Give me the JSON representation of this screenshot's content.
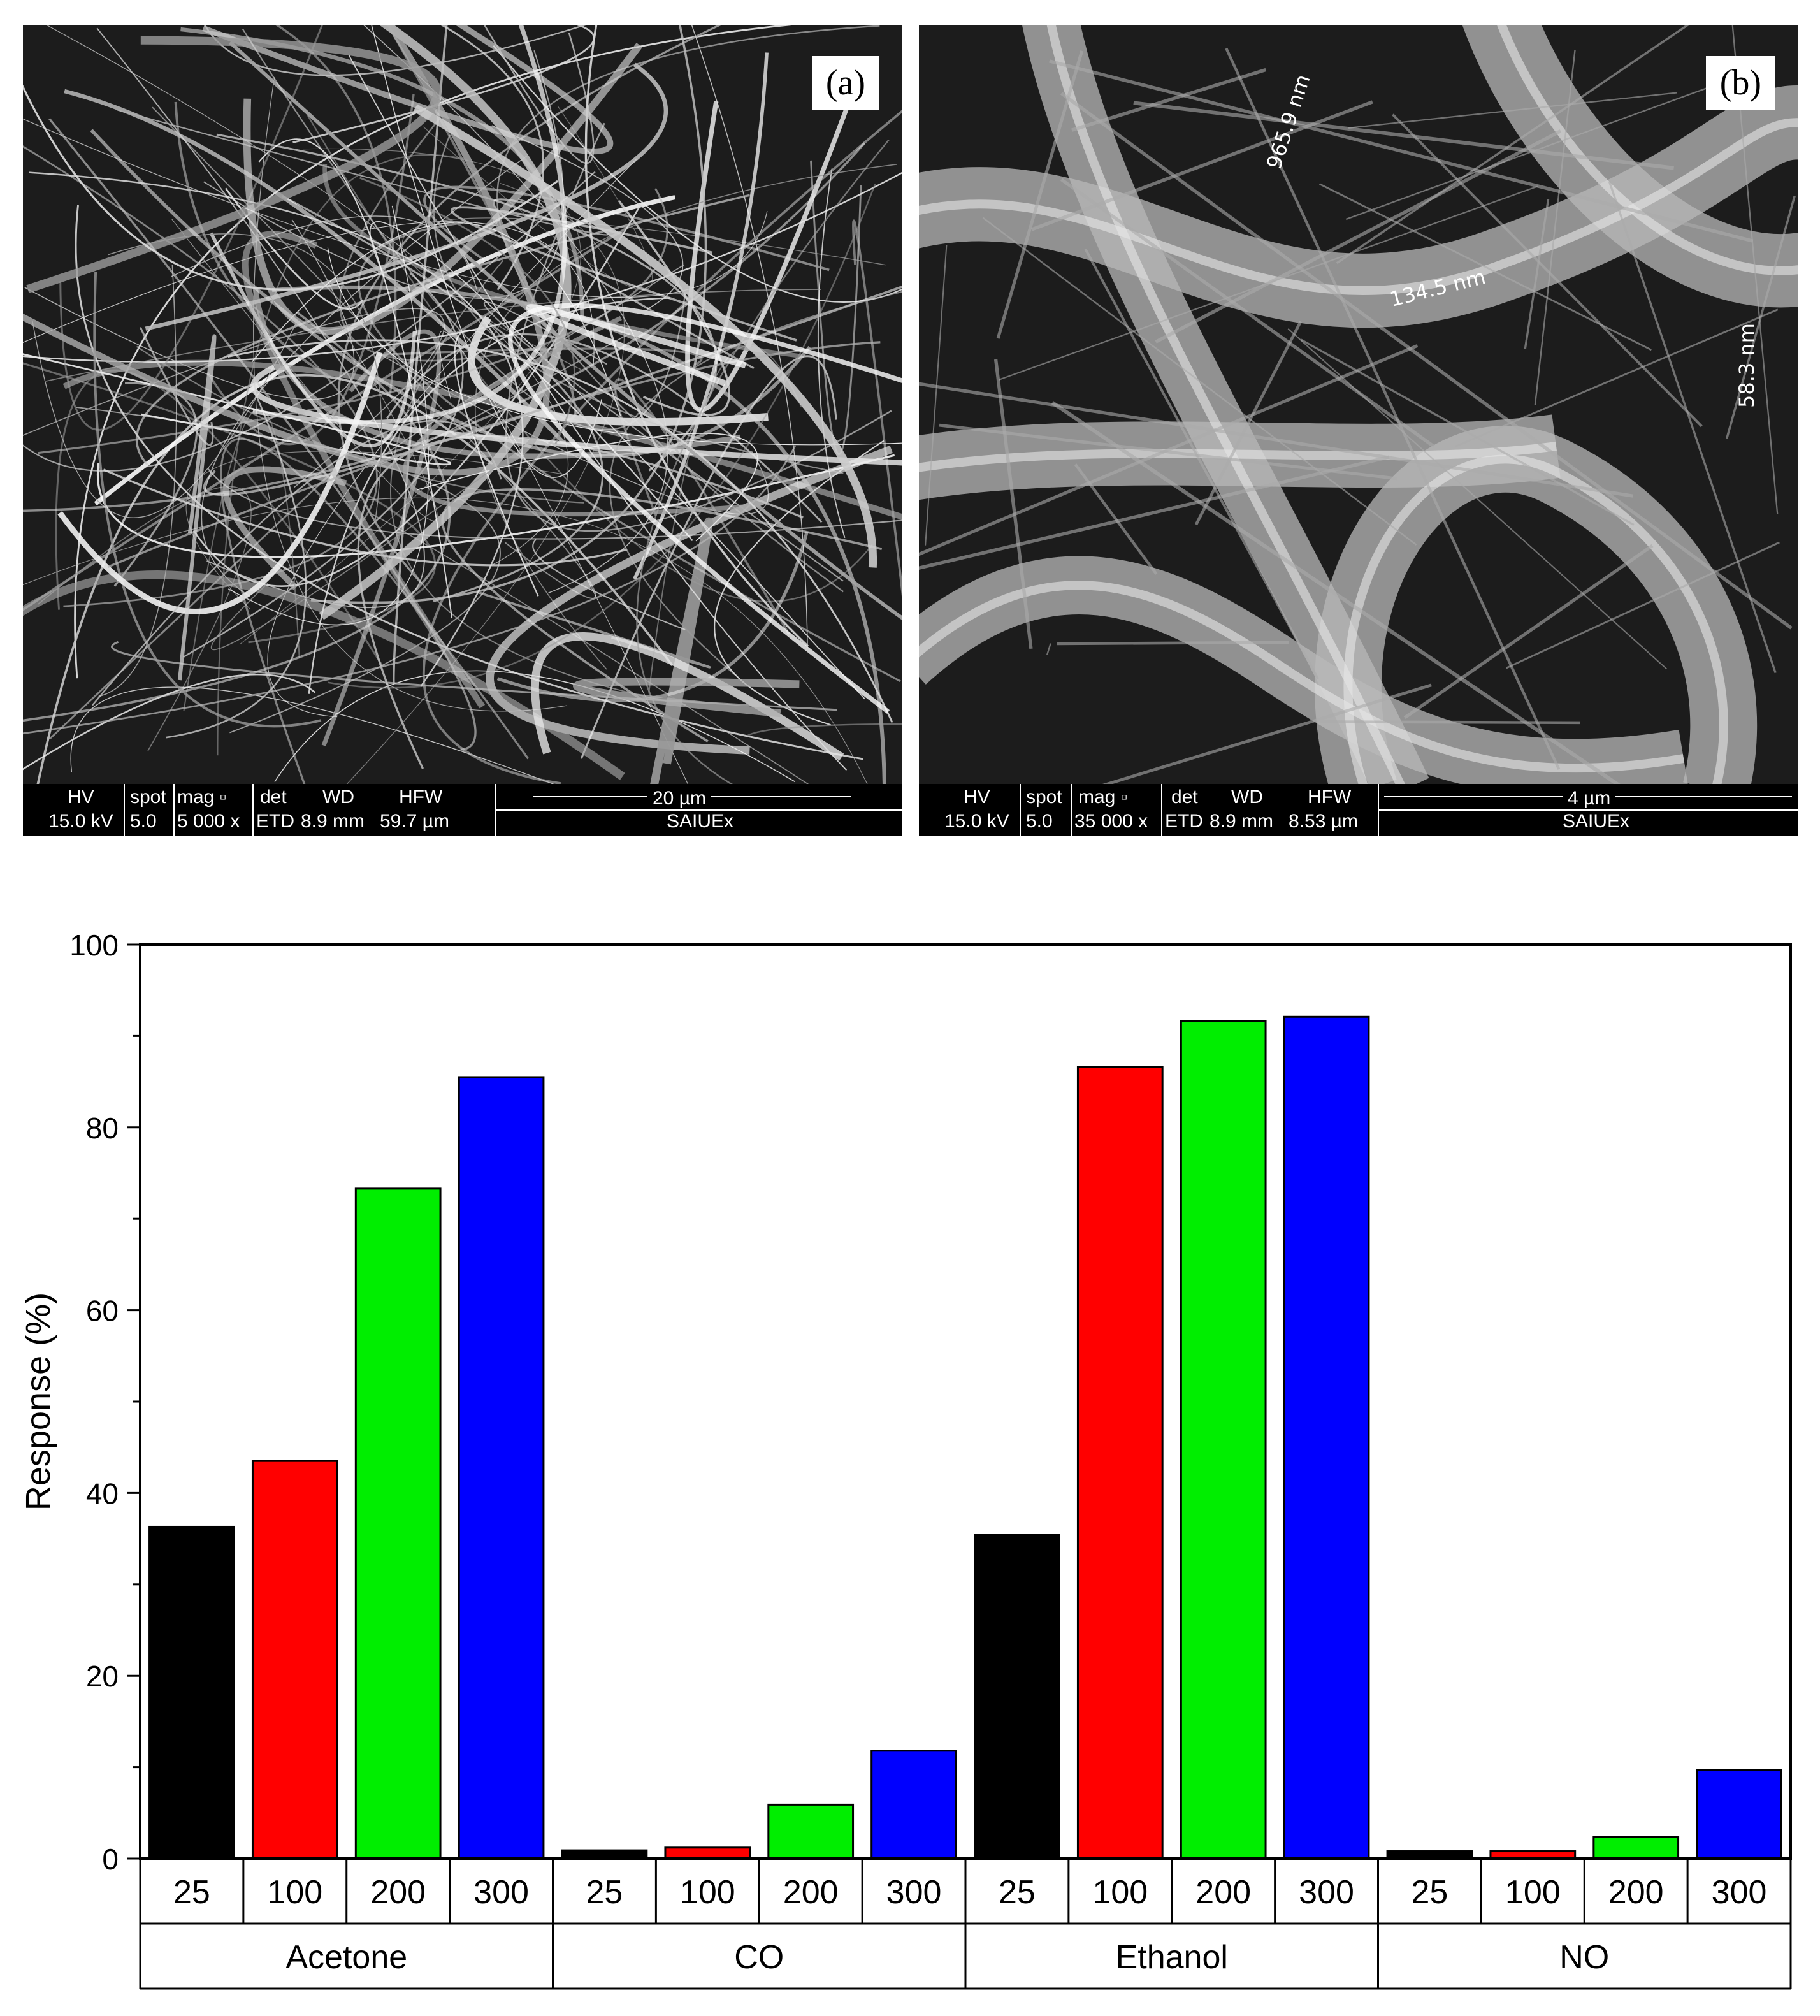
{
  "panels": [
    {
      "label": "(a)",
      "databar": {
        "headers": [
          "HV",
          "spot",
          "mag ▫",
          "det",
          "WD",
          "HFW"
        ],
        "values": [
          "15.0 kV",
          "5.0",
          "5 000 x",
          "ETD",
          "8.9 mm",
          "59.7 µm"
        ],
        "scale": "20 µm",
        "facility": "SAIUEx"
      }
    },
    {
      "label": "(b)",
      "databar": {
        "headers": [
          "HV",
          "spot",
          "mag ▫",
          "det",
          "WD",
          "HFW"
        ],
        "values": [
          "15.0 kV",
          "5.0",
          "35 000 x",
          "ETD",
          "8.9 mm",
          "8.53 µm"
        ],
        "scale": "4 µm",
        "facility": "SAIUEx"
      },
      "measurements": [
        "965.9 nm",
        "134.5 nm",
        "58.3 nm"
      ]
    }
  ],
  "chart_data": {
    "type": "bar",
    "ylabel": "Response (%)",
    "ylim": [
      0,
      100
    ],
    "yticks": [
      0,
      20,
      40,
      60,
      80,
      100
    ],
    "groups": [
      "Acetone",
      "CO",
      "Ethanol",
      "NO"
    ],
    "categories": [
      "25",
      "100",
      "200",
      "300"
    ],
    "colors": [
      "#000000",
      "#ff0000",
      "#00ee00",
      "#0000ff"
    ],
    "values": [
      [
        36.3,
        43.5,
        73.3,
        85.5
      ],
      [
        0.9,
        1.2,
        5.9,
        11.8
      ],
      [
        35.4,
        86.6,
        91.6,
        92.1
      ],
      [
        0.8,
        0.8,
        2.4,
        9.7
      ]
    ],
    "grid": false
  }
}
